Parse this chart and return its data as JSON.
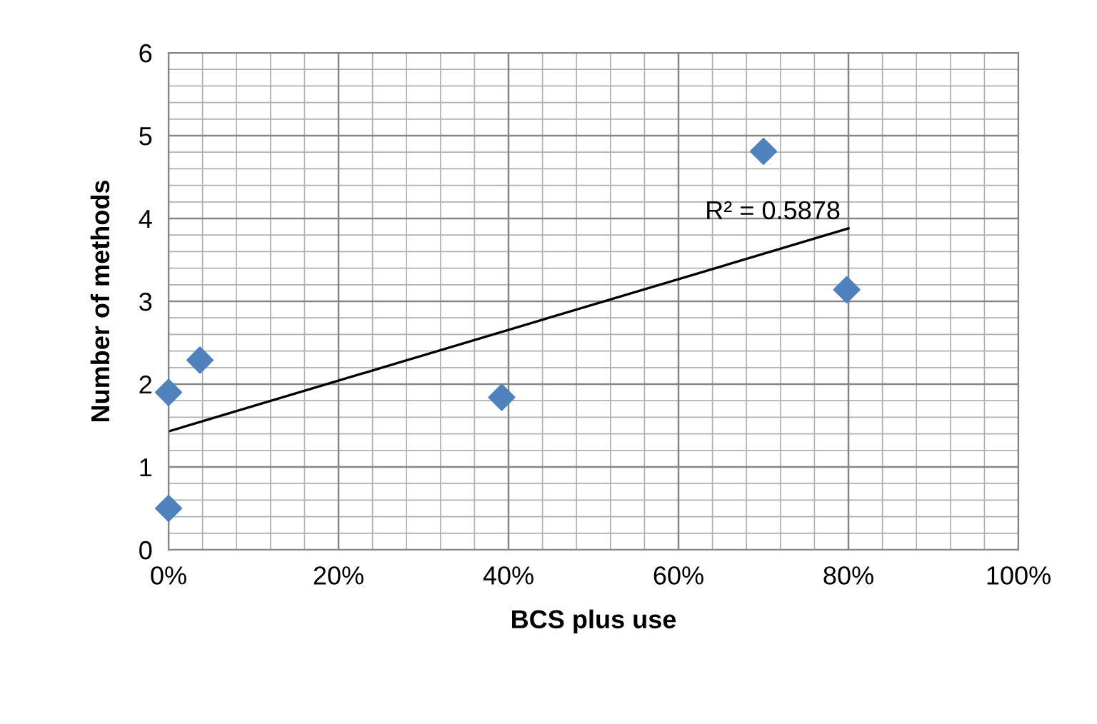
{
  "chart_data": {
    "type": "scatter",
    "xlabel": "BCS plus use",
    "ylabel": "Number of methods",
    "series": [
      {
        "color": "#4f81bd",
        "marker": "diamond",
        "x": [
          0,
          0,
          0.037,
          0.392,
          0.7,
          0.798
        ],
        "values": [
          0.5,
          1.9,
          2.29,
          1.84,
          4.81,
          3.14
        ]
      },
      {
        "type": "line",
        "color": "#000000",
        "marker": "none",
        "x": [
          0,
          0.8
        ],
        "values": [
          1.43,
          3.88
        ]
      }
    ],
    "annotations": [
      {
        "text": "R² = 0.5878",
        "x": 0.8,
        "y": 3.88
      }
    ],
    "xlim": [
      0,
      1
    ],
    "ylim": [
      0,
      6
    ],
    "xticks": [
      {
        "value": 0,
        "label": "0%"
      },
      {
        "value": 0.2,
        "label": "20%"
      },
      {
        "value": 0.4,
        "label": "40%"
      },
      {
        "value": 0.6,
        "label": "60%"
      },
      {
        "value": 0.8,
        "label": "80%"
      },
      {
        "value": 1,
        "label": "100%"
      }
    ],
    "yticks": [
      0,
      1,
      2,
      3,
      4,
      5,
      6
    ],
    "grid": true,
    "legend": false
  }
}
